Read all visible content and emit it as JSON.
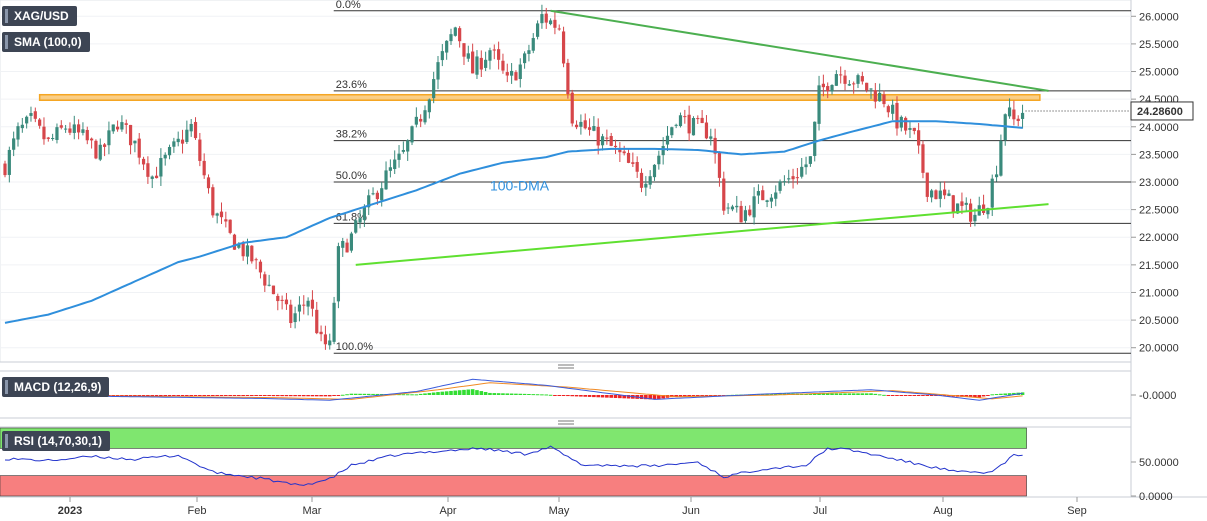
{
  "header": {
    "symbol": "XAG/USD",
    "sma_tag": "SMA (100,0)",
    "macd_tag": "MACD (12,26,9)",
    "rsi_tag": "RSI (14,70,30,1)",
    "current_price": "24.28600"
  },
  "colors": {
    "up_candle": "#3a8a7c",
    "down_candle": "#d6464a",
    "sma": "#2f8fdc",
    "resistance_line": "#4caf50",
    "support_line": "#5fe030",
    "horizontal_zone": "#f5a623",
    "macd_line": "#3b5bdb",
    "signal_line": "#f08a24",
    "hist_pos": "#33dd33",
    "hist_neg": "#ee2222",
    "rsi_line": "#2233cc",
    "rsi_overbought": "#7fe66f",
    "rsi_oversold": "#f77f7f"
  },
  "chart_data": [
    {
      "type": "candlestick",
      "title": "",
      "x": [
        "2023",
        "Feb",
        "Mar",
        "Apr",
        "May",
        "Jun",
        "Jul",
        "Aug",
        "Sep"
      ],
      "y_ticks": [
        "26.0000",
        "25.5000",
        "25.0000",
        "24.5000",
        "24.0000",
        "23.5000",
        "23.0000",
        "22.5000",
        "22.0000",
        "21.5000",
        "21.0000",
        "20.5000",
        "20.0000"
      ],
      "ylim": [
        19.85,
        26.15
      ],
      "close_path": [
        [
          0,
          23.3
        ],
        [
          3,
          23.9
        ],
        [
          6,
          24.1
        ],
        [
          10,
          23.7
        ],
        [
          14,
          24.0
        ],
        [
          18,
          23.8
        ],
        [
          22,
          23.5
        ],
        [
          26,
          24.1
        ],
        [
          30,
          23.7
        ],
        [
          34,
          23.1
        ],
        [
          38,
          23.5
        ],
        [
          43,
          24.0
        ],
        [
          48,
          22.5
        ],
        [
          52,
          22.0
        ],
        [
          57,
          21.6
        ],
        [
          62,
          21.0
        ],
        [
          66,
          20.5
        ],
        [
          70,
          20.9
        ],
        [
          73,
          20.1
        ],
        [
          75,
          20.0
        ],
        [
          77,
          21.7
        ],
        [
          80,
          22.0
        ],
        [
          84,
          22.6
        ],
        [
          88,
          23.1
        ],
        [
          92,
          23.5
        ],
        [
          96,
          24.2
        ],
        [
          100,
          25.1
        ],
        [
          104,
          25.8
        ],
        [
          108,
          25.0
        ],
        [
          112,
          25.4
        ],
        [
          116,
          24.8
        ],
        [
          120,
          25.2
        ],
        [
          124,
          26.0
        ],
        [
          128,
          25.8
        ],
        [
          131,
          24.2
        ],
        [
          135,
          23.9
        ],
        [
          139,
          23.7
        ],
        [
          143,
          23.4
        ],
        [
          147,
          23.0
        ],
        [
          151,
          23.5
        ],
        [
          155,
          24.2
        ],
        [
          159,
          24.0
        ],
        [
          163,
          23.9
        ],
        [
          166,
          22.6
        ],
        [
          170,
          22.4
        ],
        [
          174,
          22.7
        ],
        [
          178,
          22.9
        ],
        [
          182,
          23.1
        ],
        [
          186,
          23.4
        ],
        [
          188,
          24.6
        ],
        [
          192,
          25.0
        ],
        [
          195,
          24.9
        ],
        [
          199,
          24.7
        ],
        [
          203,
          24.5
        ],
        [
          206,
          24.1
        ],
        [
          210,
          23.8
        ],
        [
          213,
          22.9
        ],
        [
          217,
          22.7
        ],
        [
          221,
          22.5
        ],
        [
          224,
          22.4
        ],
        [
          227,
          22.7
        ],
        [
          229,
          23.3
        ],
        [
          231,
          24.3
        ],
        [
          233,
          24.1
        ],
        [
          235,
          24.28
        ]
      ],
      "series": [
        {
          "name": "100-DMA",
          "values": [
            [
              0,
              20.45
            ],
            [
              10,
              20.6
            ],
            [
              20,
              20.85
            ],
            [
              30,
              21.2
            ],
            [
              40,
              21.55
            ],
            [
              45,
              21.65
            ],
            [
              55,
              21.9
            ],
            [
              65,
              22.0
            ],
            [
              75,
              22.35
            ],
            [
              85,
              22.6
            ],
            [
              95,
              22.85
            ],
            [
              105,
              23.15
            ],
            [
              115,
              23.35
            ],
            [
              125,
              23.45
            ],
            [
              130,
              23.55
            ],
            [
              140,
              23.6
            ],
            [
              150,
              23.6
            ],
            [
              160,
              23.58
            ],
            [
              170,
              23.5
            ],
            [
              180,
              23.55
            ],
            [
              188,
              23.75
            ],
            [
              195,
              23.9
            ],
            [
              205,
              24.1
            ],
            [
              215,
              24.1
            ],
            [
              225,
              24.05
            ],
            [
              235,
              23.98
            ]
          ]
        }
      ],
      "annotations": {
        "fib_levels": [
          {
            "label": "0.0%",
            "value": 26.1
          },
          {
            "label": "23.6%",
            "value": 24.65
          },
          {
            "label": "38.2%",
            "value": 23.75
          },
          {
            "label": "50.0%",
            "value": 23.0
          },
          {
            "label": "61.8%",
            "value": 22.25
          },
          {
            "label": "100.0%",
            "value": 19.9
          }
        ],
        "sma_label": "100-DMA",
        "resistance_trendline": [
          [
            126,
            26.1
          ],
          [
            241,
            24.65
          ]
        ],
        "support_trendline": [
          [
            81,
            21.5
          ],
          [
            241,
            22.6
          ]
        ],
        "horizontal_zone": [
          24.48,
          24.58
        ],
        "zone_x_range": [
          8,
          239
        ],
        "last_candle_index": 235
      }
    },
    {
      "type": "line",
      "title": "",
      "series": [
        {
          "name": "MACD",
          "values": [
            [
              0,
              0.0
            ],
            [
              60,
              -0.2
            ],
            [
              75,
              -0.3
            ],
            [
              95,
              0.2
            ],
            [
              108,
              0.9
            ],
            [
              125,
              0.55
            ],
            [
              150,
              -0.25
            ],
            [
              175,
              0.05
            ],
            [
              200,
              0.3
            ],
            [
              215,
              0.0
            ],
            [
              225,
              -0.3
            ],
            [
              235,
              0.1
            ]
          ]
        },
        {
          "name": "Signal",
          "values": [
            [
              0,
              0.0
            ],
            [
              62,
              -0.15
            ],
            [
              80,
              -0.25
            ],
            [
              100,
              0.3
            ],
            [
              112,
              0.7
            ],
            [
              130,
              0.45
            ],
            [
              155,
              -0.1
            ],
            [
              178,
              0.0
            ],
            [
              205,
              0.25
            ],
            [
              220,
              -0.05
            ],
            [
              228,
              -0.22
            ],
            [
              235,
              -0.05
            ]
          ]
        }
      ],
      "y_ticks": [
        "-0.0000"
      ],
      "ylim": [
        -1.2,
        1.2
      ]
    },
    {
      "type": "line",
      "title": "",
      "series": [
        {
          "name": "RSI",
          "values": [
            [
              0,
              55
            ],
            [
              10,
              52
            ],
            [
              20,
              58
            ],
            [
              30,
              54
            ],
            [
              40,
              60
            ],
            [
              48,
              35
            ],
            [
              60,
              25
            ],
            [
              68,
              15
            ],
            [
              75,
              25
            ],
            [
              80,
              45
            ],
            [
              90,
              60
            ],
            [
              100,
              66
            ],
            [
              110,
              70
            ],
            [
              120,
              62
            ],
            [
              126,
              72
            ],
            [
              133,
              46
            ],
            [
              140,
              45
            ],
            [
              150,
              44
            ],
            [
              160,
              50
            ],
            [
              166,
              28
            ],
            [
              175,
              40
            ],
            [
              185,
              45
            ],
            [
              190,
              70
            ],
            [
              195,
              68
            ],
            [
              205,
              55
            ],
            [
              210,
              48
            ],
            [
              220,
              35
            ],
            [
              228,
              35
            ],
            [
              233,
              60
            ],
            [
              235,
              58
            ]
          ]
        }
      ],
      "y_ticks": [
        "50.0000",
        "0.0000"
      ],
      "ylim": [
        0,
        100
      ],
      "overbought": 70,
      "oversold": 30
    }
  ]
}
